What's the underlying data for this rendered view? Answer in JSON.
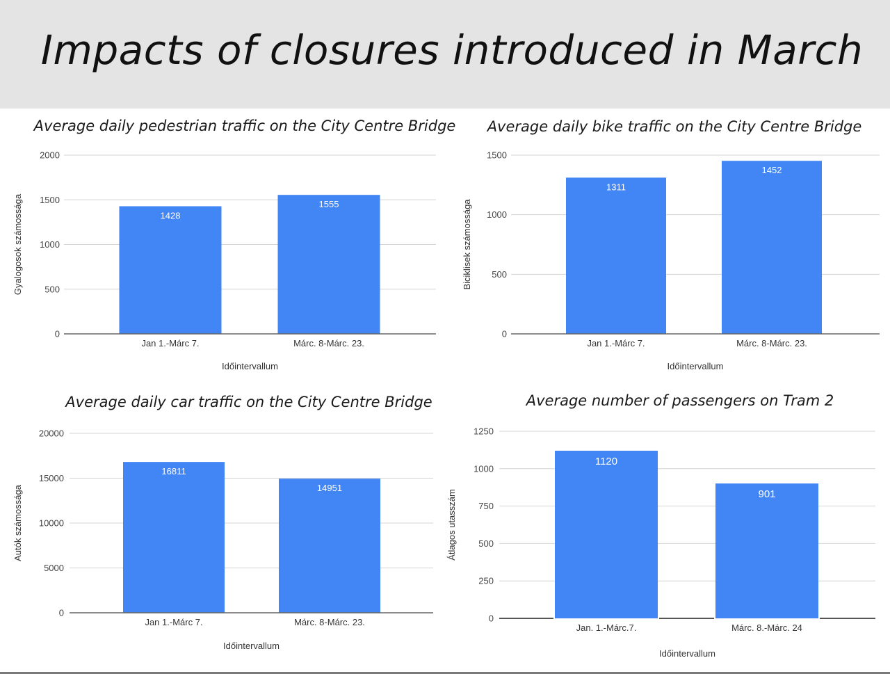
{
  "page": {
    "title": "Impacts of closures introduced in March"
  },
  "chart_data": [
    {
      "type": "bar",
      "title": "Average daily pedestrian traffic on the City Centre Bridge",
      "categories": [
        "Jan 1.-Márc 7.",
        "Márc. 8-Márc. 23."
      ],
      "values": [
        1428,
        1555
      ],
      "data_labels": [
        "1428",
        "1555"
      ],
      "xlabel": "Időintervallum",
      "ylabel": "Gyalogosok számossága",
      "ylim": [
        0,
        2000
      ],
      "yticks": [
        0,
        500,
        1000,
        1500,
        2000
      ],
      "color": "#4285f4"
    },
    {
      "type": "bar",
      "title": "Average daily bike traffic on the City Centre Bridge",
      "categories": [
        "Jan 1.-Márc 7.",
        "Márc. 8-Márc. 23."
      ],
      "values": [
        1311,
        1452
      ],
      "data_labels": [
        "1311",
        "1452"
      ],
      "xlabel": "Időintervallum",
      "ylabel": "Biciklisek számossága",
      "ylim": [
        0,
        1500
      ],
      "yticks": [
        0,
        500,
        1000,
        1500
      ],
      "color": "#4285f4"
    },
    {
      "type": "bar",
      "title": "Average daily car traffic on the City Centre Bridge",
      "categories": [
        "Jan 1.-Márc 7.",
        "Márc. 8-Márc. 23."
      ],
      "values": [
        16811,
        14951
      ],
      "data_labels": [
        "16811",
        "14951"
      ],
      "xlabel": "Időintervallum",
      "ylabel": "Autók számossága",
      "ylim": [
        0,
        20000
      ],
      "yticks": [
        0,
        5000,
        10000,
        15000,
        20000
      ],
      "color": "#4285f4"
    },
    {
      "type": "bar",
      "title": "Average number of passengers on Tram 2",
      "categories": [
        "Jan. 1.-Márc.7.",
        "Márc. 8.-Márc. 24"
      ],
      "values": [
        1120,
        901
      ],
      "data_labels": [
        "1120",
        "901"
      ],
      "xlabel": "Időintervallum",
      "ylabel": "Átlagos utasszám",
      "ylim": [
        0,
        1250
      ],
      "yticks": [
        0,
        250,
        500,
        750,
        1000,
        1250
      ],
      "color": "#4285f4"
    }
  ]
}
